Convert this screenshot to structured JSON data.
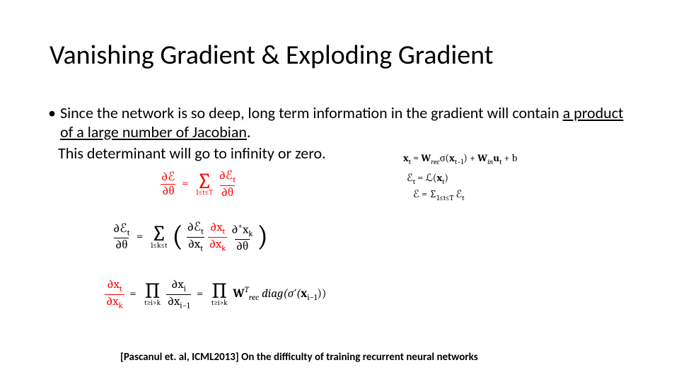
{
  "title": "Vanishing Gradient & Exploding Gradient",
  "bullet": {
    "pre": "Since the network is so deep, long term information in the gradient will contain ",
    "under": "a product of a large number of Jacobian",
    "post": ".",
    "line2": "This determinant will go to infinity or zero."
  },
  "equations": {
    "e1": {
      "lhs_num": "∂ℰ",
      "lhs_den": "∂θ",
      "sum_sub": "1≤t≤T",
      "rhs_num": "∂ℰ",
      "rhs_sub": "t",
      "rhs_den": "∂θ"
    },
    "e2": {
      "lhs_num": "∂ℰ",
      "lhs_sub": "t",
      "lhs_den": "∂θ",
      "sum_sub": "1≤k≤t",
      "f1_num": "∂ℰ",
      "f1_sub": "t",
      "f1_den_l": "∂x",
      "f1_den_sub": "t",
      "f2_num_l": "∂x",
      "f2_num_sub": "t",
      "f2_den_l": "∂x",
      "f2_den_sub": "k",
      "f3_num_l": "∂",
      "f3_num_sup": "+",
      "f3_num_r": "x",
      "f3_num_sub": "k",
      "f3_den": "∂θ"
    },
    "e3": {
      "lhs_num_l": "∂x",
      "lhs_num_sub": "t",
      "lhs_den_l": "∂x",
      "lhs_den_sub": "k",
      "prod_sub": "t≥i>k",
      "mid_num_l": "∂x",
      "mid_num_sub": "i",
      "mid_den_l": "∂x",
      "mid_den_sub": "i−1",
      "W": "W",
      "W_sup": "T",
      "W_sub": "rec",
      "diag": "diag(σ′(",
      "x": "x",
      "x_sub": "i−1",
      "close": "))"
    },
    "e4": {
      "x": "x",
      "xt": "t",
      "W": "W",
      "Wrec": "rec",
      "sig": "σ(",
      "xtm1": "t−1",
      "plus": ") + ",
      "Win": "W",
      "in": "in",
      "u": "u",
      "ut": "t",
      "b": " + b"
    },
    "e5": {
      "E": "ℰ",
      "t": "t",
      "L": " = ℒ(",
      "x": "x",
      "xt": "t",
      "cl": ")"
    },
    "e6": {
      "E": "ℰ = ",
      "sum_sub": "1≤t≤T",
      "Et": " ℰ",
      "t": "t"
    }
  },
  "citation": "[Pascanul et. al, ICML2013] On the difficulty of training recurrent neural networks",
  "colors": {
    "red": "#ff0000",
    "text": "#000000",
    "bg": "#ffffff"
  },
  "fonts": {
    "body": "Calibri",
    "math": "Cambria Math",
    "title_size": 38,
    "body_size": 22,
    "citation_size": 15
  }
}
